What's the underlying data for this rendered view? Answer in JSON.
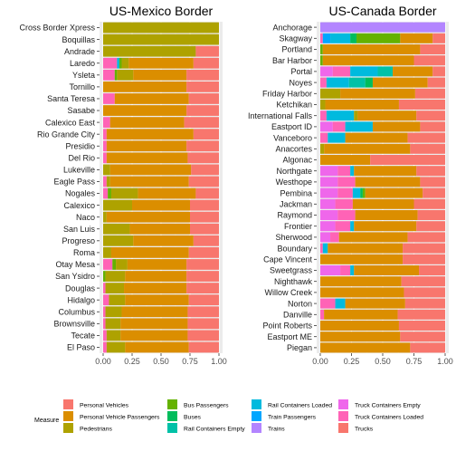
{
  "chart_data": {
    "type": "bar",
    "orientation": "horizontal",
    "stacked": "fill",
    "legend": {
      "title": "Measure",
      "placement": "bottom",
      "items": [
        {
          "key": "pv",
          "label": "Personal Vehicles",
          "color": "#F8766D"
        },
        {
          "key": "pvp",
          "label": "Personal Vehicle Passengers",
          "color": "#DB8E00"
        },
        {
          "key": "ped",
          "label": "Pedestrians",
          "color": "#AEA200"
        },
        {
          "key": "bp",
          "label": "Bus Passengers",
          "color": "#64B200"
        },
        {
          "key": "bus",
          "label": "Buses",
          "color": "#00BD5C"
        },
        {
          "key": "rce",
          "label": "Rail Containers Empty",
          "color": "#00C1A7"
        },
        {
          "key": "rcl",
          "label": "Rail Containers Loaded",
          "color": "#00BADE"
        },
        {
          "key": "tp",
          "label": "Train Passengers",
          "color": "#00A6FF"
        },
        {
          "key": "tr",
          "label": "Trains",
          "color": "#B385FF"
        },
        {
          "key": "tce",
          "label": "Truck Containers Empty",
          "color": "#EF67EB"
        },
        {
          "key": "tcl",
          "label": "Truck Containers Loaded",
          "color": "#FF63B6"
        },
        {
          "key": "tk",
          "label": "Trucks",
          "color": "#F8766D"
        }
      ]
    },
    "panels": [
      {
        "title": "US-Mexico Border",
        "x_ticks": [
          "0.00",
          "0.25",
          "0.50",
          "0.75",
          "1.00"
        ],
        "xlim": [
          0,
          1
        ],
        "grid": true,
        "bars": [
          {
            "label": "Cross Border Xpress",
            "values": {
              "ped": 1.0
            }
          },
          {
            "label": "Boquillas",
            "values": {
              "ped": 1.0
            }
          },
          {
            "label": "Andrade",
            "values": {
              "ped": 0.8,
              "pv": 0.2
            }
          },
          {
            "label": "Laredo",
            "values": {
              "tcl": 0.12,
              "rcl": 0.02,
              "bp": 0.02,
              "ped": 0.06,
              "pvp": 0.56,
              "pv": 0.22
            }
          },
          {
            "label": "Ysleta",
            "values": {
              "tcl": 0.1,
              "bp": 0.02,
              "ped": 0.14,
              "pvp": 0.46,
              "pv": 0.28
            }
          },
          {
            "label": "Tornillo",
            "values": {
              "pvp": 0.72,
              "pv": 0.28
            }
          },
          {
            "label": "Santa Teresa",
            "values": {
              "tcl": 0.1,
              "pvp": 0.64,
              "pv": 0.26
            }
          },
          {
            "label": "Sasabe",
            "values": {
              "pvp": 0.72,
              "pv": 0.28
            }
          },
          {
            "label": "Calexico East",
            "values": {
              "tcl": 0.06,
              "pvp": 0.64,
              "pv": 0.3
            }
          },
          {
            "label": "Rio Grande City",
            "values": {
              "tcl": 0.03,
              "pvp": 0.75,
              "pv": 0.22
            }
          },
          {
            "label": "Presidio",
            "values": {
              "tcl": 0.03,
              "pvp": 0.69,
              "pv": 0.28
            }
          },
          {
            "label": "Del Rio",
            "values": {
              "tcl": 0.03,
              "pvp": 0.7,
              "pv": 0.27
            }
          },
          {
            "label": "Lukeville",
            "values": {
              "ped": 0.06,
              "pvp": 0.7,
              "pv": 0.24
            }
          },
          {
            "label": "Eagle Pass",
            "values": {
              "tcl": 0.03,
              "ped": 0.03,
              "pvp": 0.68,
              "pv": 0.26
            }
          },
          {
            "label": "Nogales",
            "values": {
              "tcl": 0.04,
              "bp": 0.03,
              "ped": 0.23,
              "pvp": 0.5,
              "pv": 0.2
            }
          },
          {
            "label": "Calexico",
            "values": {
              "ped": 0.25,
              "pvp": 0.5,
              "pv": 0.25
            }
          },
          {
            "label": "Naco",
            "values": {
              "ped": 0.03,
              "pvp": 0.72,
              "pv": 0.25
            }
          },
          {
            "label": "San Luis",
            "values": {
              "ped": 0.23,
              "pvp": 0.52,
              "pv": 0.25
            }
          },
          {
            "label": "Progreso",
            "values": {
              "ped": 0.26,
              "pvp": 0.52,
              "pv": 0.22
            }
          },
          {
            "label": "Roma",
            "values": {
              "ped": 0.07,
              "pvp": 0.67,
              "pv": 0.26
            }
          },
          {
            "label": "Otay Mesa",
            "values": {
              "tcl": 0.08,
              "bp": 0.03,
              "ped": 0.1,
              "pvp": 0.51,
              "pv": 0.28
            }
          },
          {
            "label": "San Ysidro",
            "values": {
              "bp": 0.02,
              "ped": 0.17,
              "pvp": 0.53,
              "pv": 0.28
            }
          },
          {
            "label": "Douglas",
            "values": {
              "tcl": 0.02,
              "ped": 0.16,
              "pvp": 0.54,
              "pv": 0.28
            }
          },
          {
            "label": "Hidalgo",
            "values": {
              "tcl": 0.05,
              "ped": 0.14,
              "pvp": 0.55,
              "pv": 0.26
            }
          },
          {
            "label": "Columbus",
            "values": {
              "tcl": 0.02,
              "ped": 0.14,
              "pvp": 0.57,
              "pv": 0.27
            }
          },
          {
            "label": "Brownsville",
            "values": {
              "tcl": 0.02,
              "ped": 0.13,
              "pvp": 0.58,
              "pv": 0.27
            }
          },
          {
            "label": "Tecate",
            "values": {
              "tcl": 0.03,
              "ped": 0.12,
              "pvp": 0.58,
              "pv": 0.27
            }
          },
          {
            "label": "El Paso",
            "values": {
              "tcl": 0.03,
              "ped": 0.16,
              "pvp": 0.55,
              "pv": 0.26
            }
          }
        ]
      },
      {
        "title": "US-Canada Border",
        "x_ticks": [
          "0.00",
          "0.25",
          "0.50",
          "0.75",
          "1.00"
        ],
        "xlim": [
          0,
          1
        ],
        "grid": true,
        "bars": [
          {
            "label": "Anchorage",
            "values": {
              "tr": 1.0
            }
          },
          {
            "label": "Skagway",
            "values": {
              "tcl": 0.02,
              "tp": 0.06,
              "rcl": 0.16,
              "bus": 0.05,
              "bp": 0.35,
              "pvp": 0.26,
              "pv": 0.1
            }
          },
          {
            "label": "Portland",
            "values": {
              "bp": 0.02,
              "pvp": 0.78,
              "pv": 0.2
            }
          },
          {
            "label": "Bar Harbor",
            "values": {
              "bp": 0.02,
              "pvp": 0.73,
              "pv": 0.25
            }
          },
          {
            "label": "Portal",
            "values": {
              "tce": 0.1,
              "tcl": 0.14,
              "rcl": 0.22,
              "rce": 0.12,
              "pvp": 0.32,
              "pv": 0.1
            }
          },
          {
            "label": "Noyes",
            "values": {
              "tcl": 0.05,
              "rcl": 0.18,
              "rce": 0.13,
              "bus": 0.06,
              "pvp": 0.44,
              "pv": 0.14
            }
          },
          {
            "label": "Friday Harbor",
            "values": {
              "ped": 0.16,
              "pvp": 0.6,
              "pv": 0.24
            }
          },
          {
            "label": "Ketchikan",
            "values": {
              "ped": 0.04,
              "pvp": 0.59,
              "pv": 0.37
            }
          },
          {
            "label": "International Falls",
            "values": {
              "tcl": 0.05,
              "rcl": 0.22,
              "ped": 0.03,
              "pvp": 0.47,
              "pv": 0.23
            }
          },
          {
            "label": "Eastport ID",
            "values": {
              "tce": 0.1,
              "tcl": 0.1,
              "rcl": 0.22,
              "pvp": 0.38,
              "pv": 0.2
            }
          },
          {
            "label": "Vanceboro",
            "values": {
              "tcl": 0.06,
              "rcl": 0.14,
              "pvp": 0.5,
              "pv": 0.3
            }
          },
          {
            "label": "Anacortes",
            "values": {
              "ped": 0.03,
              "pvp": 0.69,
              "pv": 0.28
            }
          },
          {
            "label": "Algonac",
            "values": {
              "pvp": 0.4,
              "pv": 0.6
            }
          },
          {
            "label": "Northgate",
            "values": {
              "tce": 0.14,
              "tcl": 0.1,
              "rcl": 0.03,
              "pvp": 0.5,
              "pv": 0.23
            }
          },
          {
            "label": "Westhope",
            "values": {
              "tce": 0.14,
              "tcl": 0.14,
              "pvp": 0.52,
              "pv": 0.2
            }
          },
          {
            "label": "Pembina",
            "values": {
              "tce": 0.14,
              "tcl": 0.12,
              "rcl": 0.06,
              "bus": 0.02,
              "bp": 0.02,
              "pvp": 0.46,
              "pv": 0.18
            }
          },
          {
            "label": "Jackman",
            "values": {
              "tce": 0.12,
              "tcl": 0.14,
              "pvp": 0.49,
              "pv": 0.25
            }
          },
          {
            "label": "Raymond",
            "values": {
              "tce": 0.14,
              "tcl": 0.14,
              "pvp": 0.5,
              "pv": 0.22
            }
          },
          {
            "label": "Frontier",
            "values": {
              "tce": 0.12,
              "tcl": 0.12,
              "rcl": 0.03,
              "pvp": 0.5,
              "pv": 0.23
            }
          },
          {
            "label": "Sherwood",
            "values": {
              "tce": 0.08,
              "tcl": 0.07,
              "pvp": 0.55,
              "pv": 0.3
            }
          },
          {
            "label": "Boundary",
            "values": {
              "tcl": 0.02,
              "rcl": 0.04,
              "pvp": 0.6,
              "pv": 0.34
            }
          },
          {
            "label": "Cape Vincent",
            "values": {
              "pvp": 0.66,
              "pv": 0.34
            }
          },
          {
            "label": "Sweetgrass",
            "values": {
              "tcl": 0.08,
              "tce": 0.16,
              "rcl": 0.03,
              "pvp": 0.52,
              "pv": 0.21
            }
          },
          {
            "label": "Nighthawk",
            "values": {
              "pvp": 0.65,
              "pv": 0.35
            }
          },
          {
            "label": "Willow Creek",
            "values": {
              "pvp": 0.67,
              "pv": 0.33
            }
          },
          {
            "label": "Norton",
            "values": {
              "tcl": 0.12,
              "rcl": 0.08,
              "pvp": 0.48,
              "pv": 0.32
            }
          },
          {
            "label": "Danville",
            "values": {
              "tcl": 0.03,
              "pvp": 0.59,
              "pv": 0.38
            }
          },
          {
            "label": "Point Roberts",
            "values": {
              "pvp": 0.63,
              "pv": 0.37
            }
          },
          {
            "label": "Eastport ME",
            "values": {
              "pvp": 0.64,
              "pv": 0.36
            }
          },
          {
            "label": "Piegan",
            "values": {
              "pvp": 0.72,
              "pv": 0.28
            }
          }
        ]
      }
    ]
  }
}
